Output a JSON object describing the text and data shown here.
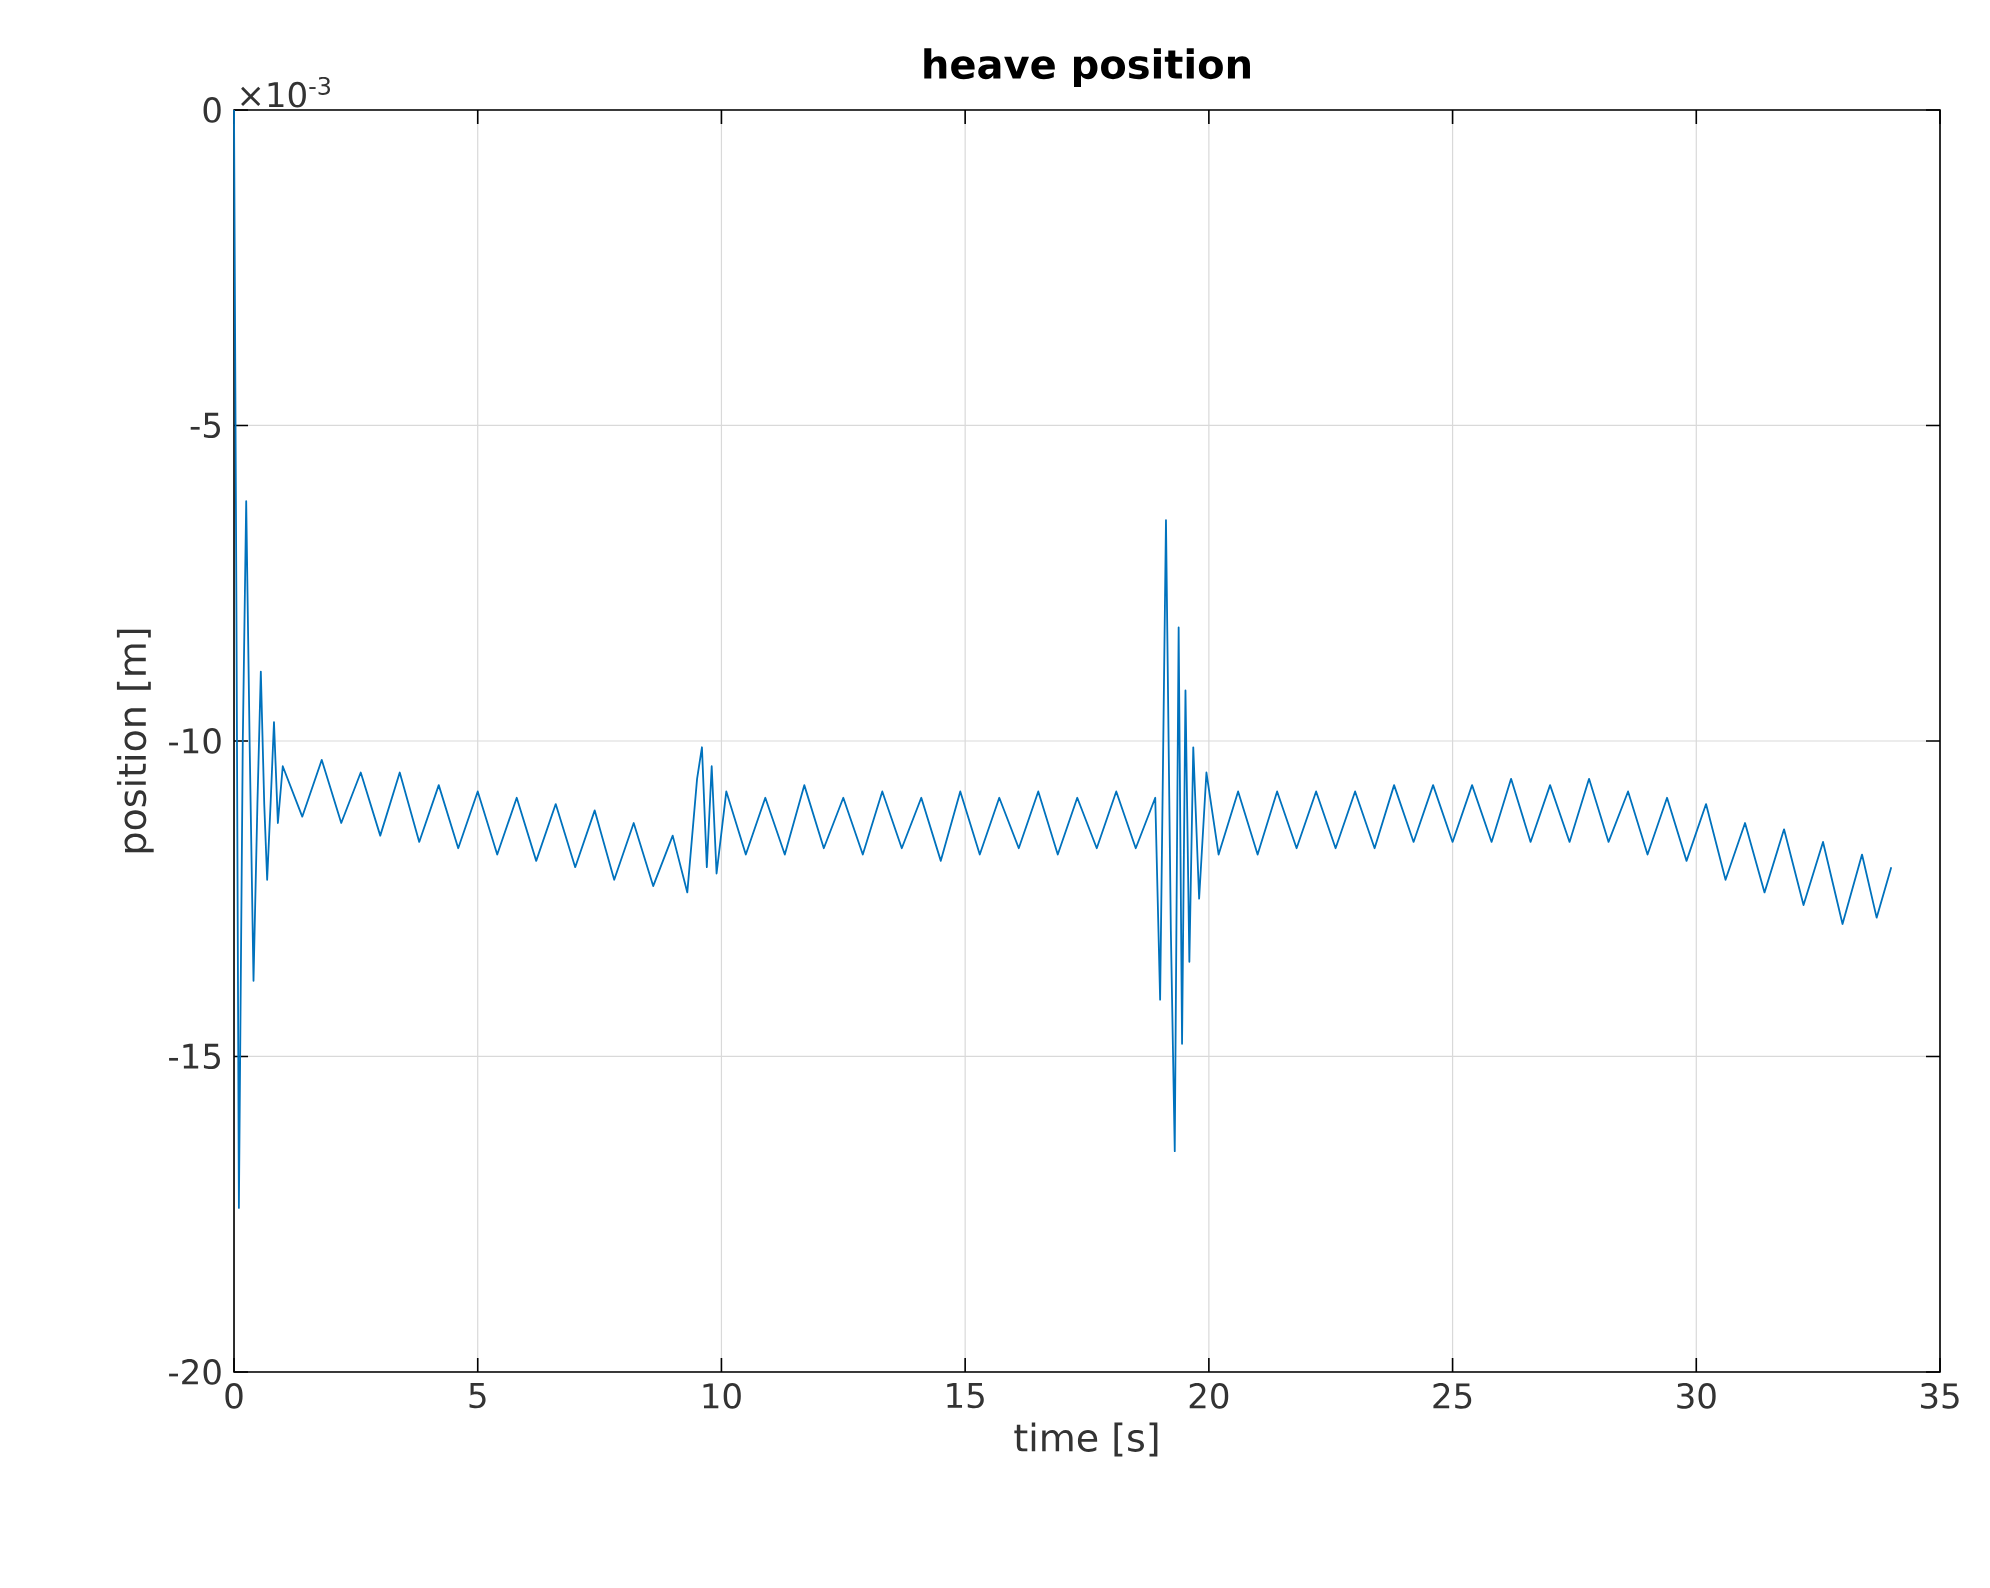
{
  "chart_data": {
    "type": "line",
    "title": "heave position",
    "xlabel": "time [s]",
    "ylabel": "position [m]",
    "annotations": [
      "×10$^{-3}$"
    ],
    "xlim": [
      0,
      35
    ],
    "xticks": [
      0,
      5,
      10,
      15,
      20,
      25,
      30,
      35
    ],
    "ylim": [
      -20,
      0
    ],
    "yticks": [
      -20,
      -15,
      -10,
      -5,
      0
    ],
    "grid": true,
    "marker": "none",
    "line_style": "solid",
    "series": [
      {
        "color": "#0072bd",
        "x": [
          0,
          0.05,
          0.1,
          0.18,
          0.25,
          0.32,
          0.4,
          0.48,
          0.55,
          0.62,
          0.68,
          0.75,
          0.82,
          0.9,
          1.0,
          1.4,
          1.8,
          2.2,
          2.6,
          3.0,
          3.4,
          3.8,
          4.2,
          4.6,
          5.0,
          5.4,
          5.8,
          6.2,
          6.6,
          7.0,
          7.4,
          7.8,
          8.2,
          8.6,
          9.0,
          9.3,
          9.5,
          9.6,
          9.7,
          9.8,
          9.9,
          10.1,
          10.5,
          10.9,
          11.3,
          11.7,
          12.1,
          12.5,
          12.9,
          13.3,
          13.7,
          14.1,
          14.5,
          14.9,
          15.3,
          15.7,
          16.1,
          16.5,
          16.9,
          17.3,
          17.7,
          18.1,
          18.5,
          18.9,
          19.0,
          19.12,
          19.22,
          19.3,
          19.38,
          19.45,
          19.52,
          19.6,
          19.68,
          19.8,
          19.95,
          20.2,
          20.6,
          21.0,
          21.4,
          21.8,
          22.2,
          22.6,
          23.0,
          23.4,
          23.8,
          24.2,
          24.6,
          25.0,
          25.4,
          25.8,
          26.2,
          26.6,
          27.0,
          27.4,
          27.8,
          28.2,
          28.6,
          29.0,
          29.4,
          29.8,
          30.2,
          30.6,
          31.0,
          31.4,
          31.8,
          32.2,
          32.6,
          33.0,
          33.4,
          33.7,
          34.0
        ],
        "values": [
          0,
          -8,
          -17.4,
          -10,
          -6.2,
          -10,
          -13.8,
          -11,
          -8.9,
          -11,
          -12.2,
          -11,
          -9.7,
          -11.3,
          -10.4,
          -11.2,
          -10.3,
          -11.3,
          -10.5,
          -11.5,
          -10.5,
          -11.6,
          -10.7,
          -11.7,
          -10.8,
          -11.8,
          -10.9,
          -11.9,
          -11,
          -12,
          -11.1,
          -12.2,
          -11.3,
          -12.3,
          -11.5,
          -12.4,
          -10.6,
          -10.1,
          -12,
          -10.4,
          -12.1,
          -10.8,
          -11.8,
          -10.9,
          -11.8,
          -10.7,
          -11.7,
          -10.9,
          -11.8,
          -10.8,
          -11.7,
          -10.9,
          -11.9,
          -10.8,
          -11.8,
          -10.9,
          -11.7,
          -10.8,
          -11.8,
          -10.9,
          -11.7,
          -10.8,
          -11.7,
          -10.9,
          -14.1,
          -6.5,
          -13,
          -16.5,
          -8.2,
          -14.8,
          -9.2,
          -13.5,
          -10.1,
          -12.5,
          -10.5,
          -11.8,
          -10.8,
          -11.8,
          -10.8,
          -11.7,
          -10.8,
          -11.7,
          -10.8,
          -11.7,
          -10.7,
          -11.6,
          -10.7,
          -11.6,
          -10.7,
          -11.6,
          -10.6,
          -11.6,
          -10.7,
          -11.6,
          -10.6,
          -11.6,
          -10.8,
          -11.8,
          -10.9,
          -11.9,
          -11,
          -12.2,
          -11.3,
          -12.4,
          -11.4,
          -12.6,
          -11.6,
          -12.9,
          -11.8,
          -12.8,
          -12
        ]
      }
    ]
  }
}
